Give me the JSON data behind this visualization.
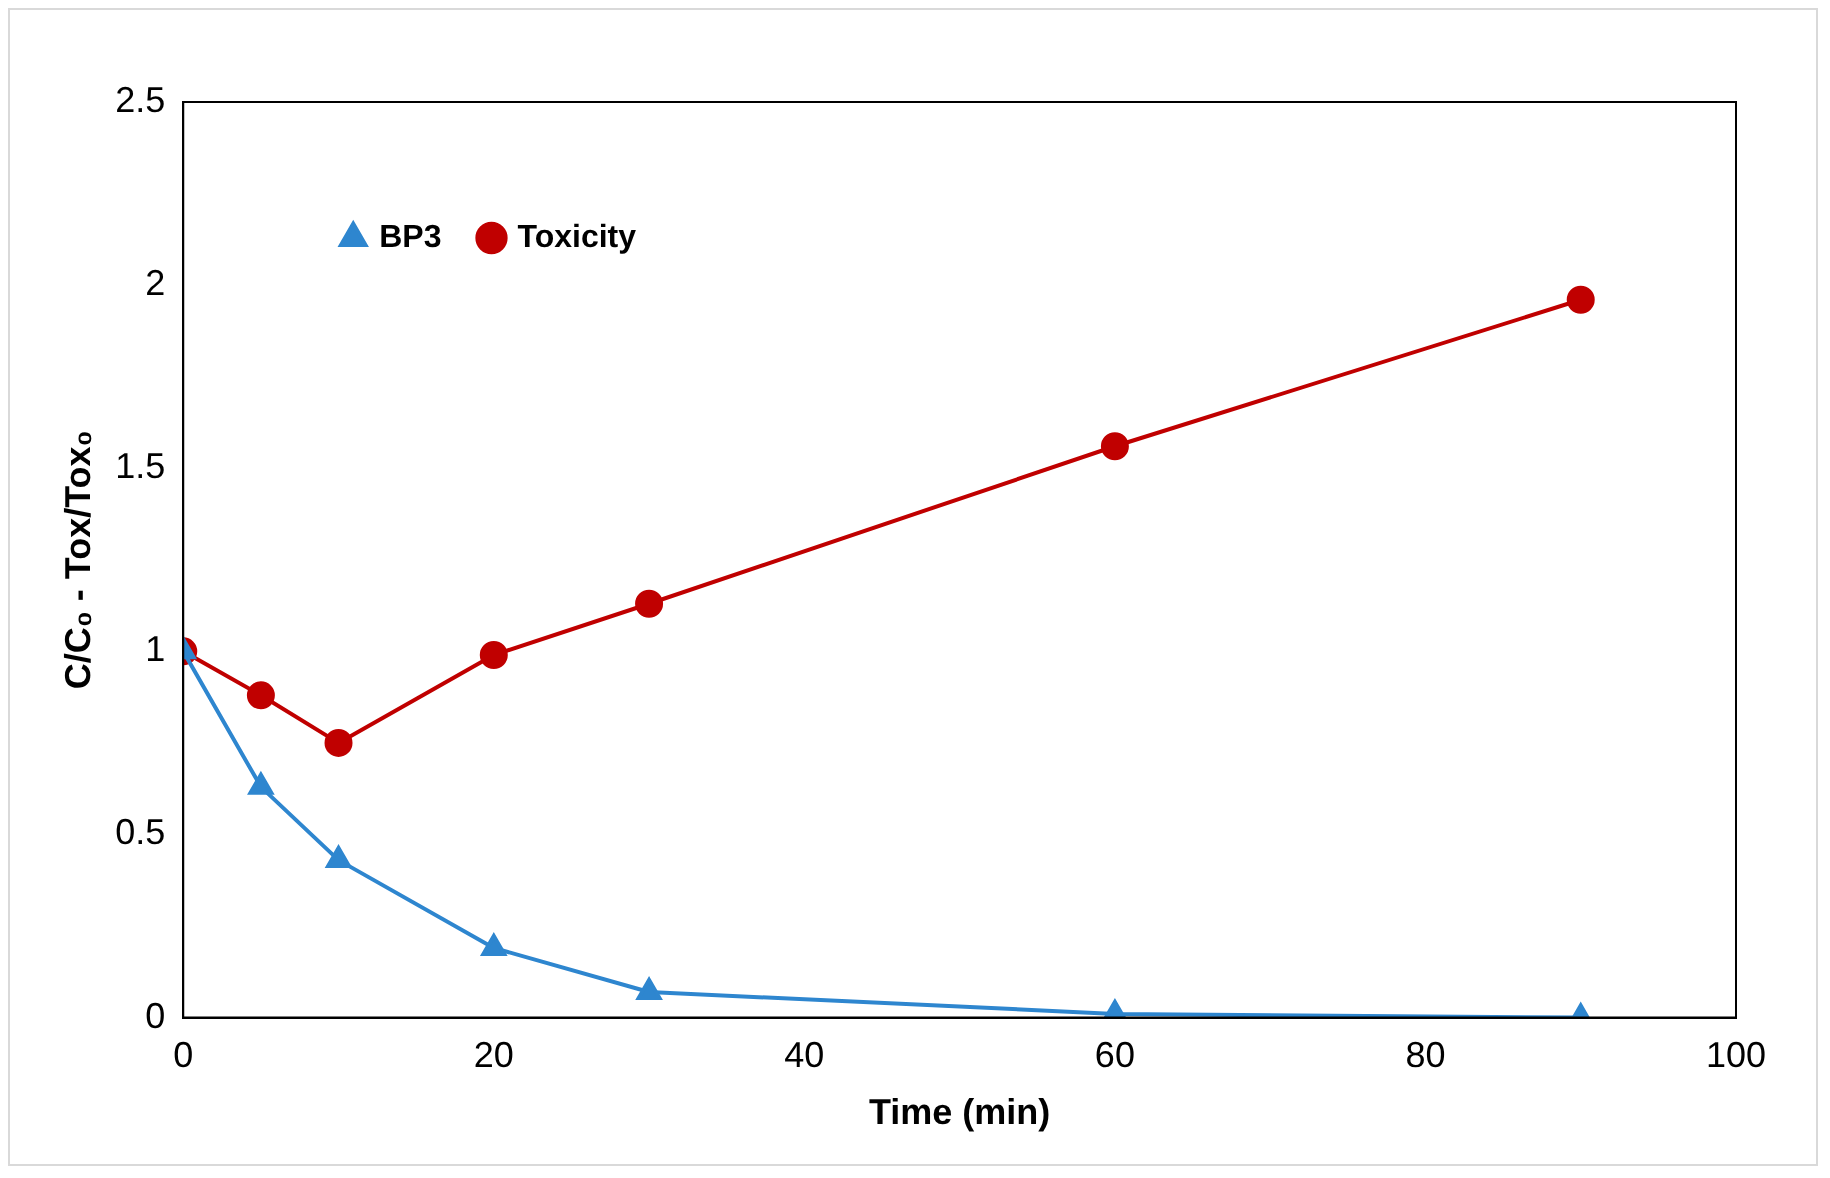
{
  "chart_data": {
    "type": "line",
    "xlabel": "Time (min)",
    "ylabel": "C/C₀ - Tox/Tox₀",
    "x": [
      0,
      5,
      10,
      20,
      30,
      60,
      90
    ],
    "series": [
      {
        "name": "BP3",
        "color": "#2e86cf",
        "marker": "triangle",
        "values": [
          1,
          0.63,
          0.43,
          0.19,
          0.07,
          0.01,
          0.0
        ]
      },
      {
        "name": "Toxicity",
        "color": "#c00000",
        "marker": "circle",
        "values": [
          1,
          0.88,
          0.75,
          0.99,
          1.13,
          1.56,
          1.96
        ]
      }
    ],
    "xlim": [
      0,
      100
    ],
    "xticks": [
      0,
      20,
      40,
      60,
      80,
      100
    ],
    "ylim": [
      0,
      2.5
    ],
    "yticks": [
      0,
      0.5,
      1,
      1.5,
      2,
      2.5
    ],
    "grid": false,
    "legend": "top left",
    "line_style": "solid"
  }
}
